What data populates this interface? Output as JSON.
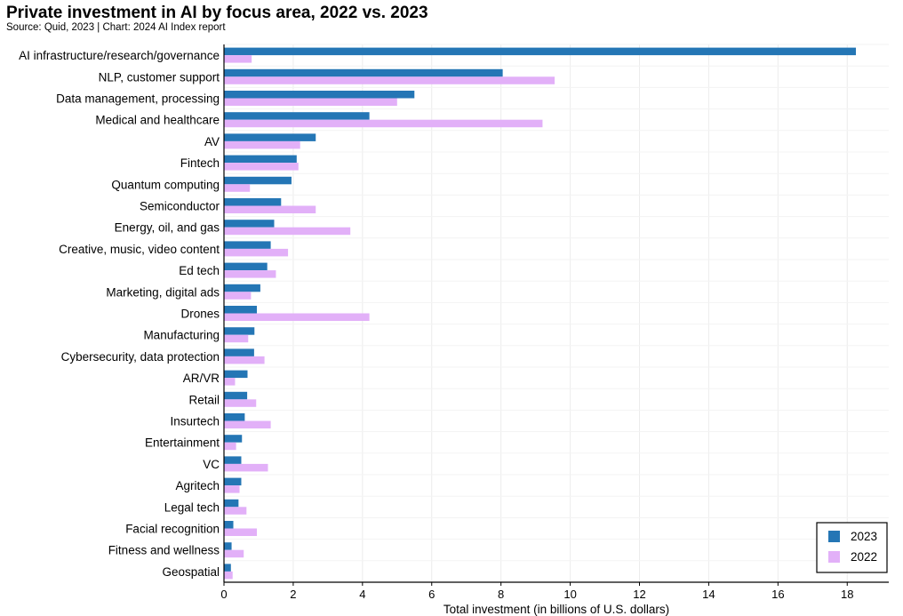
{
  "title": "Private investment in AI by focus area, 2022 vs. 2023",
  "subtitle": "Source: Quid, 2023 | Chart: 2024 AI Index report",
  "colors": {
    "2023": "#2476b5",
    "2022": "#e2b0f8"
  },
  "chart_data": {
    "type": "bar",
    "orientation": "horizontal",
    "title": "Private investment in AI by focus area, 2022 vs. 2023",
    "xlabel": "Total investment (in billions of U.S. dollars)",
    "ylabel": "",
    "xlim": [
      0,
      19.2
    ],
    "xticks": [
      0,
      2,
      4,
      6,
      8,
      10,
      12,
      14,
      16,
      18
    ],
    "grid": true,
    "legend_position": "bottom-right",
    "categories": [
      "AI infrastructure/research/governance",
      "NLP, customer support",
      "Data management, processing",
      "Medical and healthcare",
      "AV",
      "Fintech",
      "Quantum computing",
      "Semiconductor",
      "Energy, oil, and gas",
      "Creative, music, video content",
      "Ed tech",
      "Marketing, digital ads",
      "Drones",
      "Manufacturing",
      "Cybersecurity, data protection",
      "AR/VR",
      "Retail",
      "Insurtech",
      "Entertainment",
      "VC",
      "Agritech",
      "Legal tech",
      "Facial recognition",
      "Fitness and wellness",
      "Geospatial"
    ],
    "series": [
      {
        "name": "2023",
        "values": [
          18.25,
          8.05,
          5.5,
          4.2,
          2.65,
          2.1,
          1.95,
          1.65,
          1.45,
          1.35,
          1.25,
          1.05,
          0.95,
          0.88,
          0.87,
          0.68,
          0.67,
          0.6,
          0.52,
          0.5,
          0.5,
          0.42,
          0.27,
          0.22,
          0.2
        ]
      },
      {
        "name": "2022",
        "values": [
          0.8,
          9.55,
          5.0,
          9.2,
          2.2,
          2.15,
          0.75,
          2.65,
          3.65,
          1.85,
          1.5,
          0.78,
          4.2,
          0.7,
          1.17,
          0.32,
          0.93,
          1.35,
          0.35,
          1.27,
          0.45,
          0.65,
          0.95,
          0.57,
          0.25
        ]
      }
    ]
  }
}
